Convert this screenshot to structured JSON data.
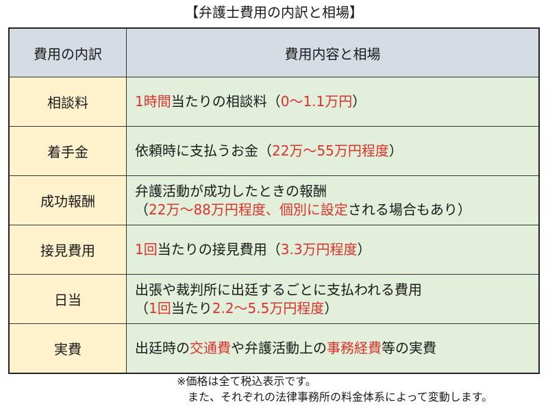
{
  "title": "【弁護士費用の内訳と相場】",
  "header": {
    "col1": "費用の内訳",
    "col2": "費用内容と相場"
  },
  "colors": {
    "header_bg": "#d6dce4",
    "key_bg": "#fff2cc",
    "value_bg": "#e2efda",
    "highlight": "#e0302c"
  },
  "rows": [
    {
      "key": "相談料",
      "lines": [
        [
          {
            "t": "1時間",
            "red": true
          },
          {
            "t": "当たりの相談料（",
            "red": false
          },
          {
            "t": "0～1.1万円",
            "red": true
          },
          {
            "t": "）",
            "red": false
          }
        ]
      ]
    },
    {
      "key": "着手金",
      "lines": [
        [
          {
            "t": "依頼時に支払うお金（",
            "red": false
          },
          {
            "t": "22万～55万円程度",
            "red": true
          },
          {
            "t": "）",
            "red": false
          }
        ]
      ]
    },
    {
      "key": "成功報酬",
      "lines": [
        [
          {
            "t": "弁護活動が成功したときの報酬",
            "red": false
          }
        ],
        [
          {
            "t": "（",
            "red": false
          },
          {
            "t": "22万～88万円程度、個別に設定",
            "red": true
          },
          {
            "t": "される場合もあり）",
            "red": false
          }
        ]
      ]
    },
    {
      "key": "接見費用",
      "lines": [
        [
          {
            "t": "1回",
            "red": true
          },
          {
            "t": "当たりの接見費用（",
            "red": false
          },
          {
            "t": "3.3万円程度",
            "red": true
          },
          {
            "t": "）",
            "red": false
          }
        ]
      ]
    },
    {
      "key": "日当",
      "lines": [
        [
          {
            "t": "出張や裁判所に出廷するごとに支払われる費用",
            "red": false
          }
        ],
        [
          {
            "t": "（",
            "red": false
          },
          {
            "t": "1回",
            "red": true
          },
          {
            "t": "当たり",
            "red": false
          },
          {
            "t": "2.2～5.5万円程度",
            "red": true
          },
          {
            "t": "）",
            "red": false
          }
        ]
      ]
    },
    {
      "key": "実費",
      "lines": [
        [
          {
            "t": "出廷時の",
            "red": false
          },
          {
            "t": "交通費",
            "red": true
          },
          {
            "t": "や弁護活動上の",
            "red": false
          },
          {
            "t": "事務経費",
            "red": true
          },
          {
            "t": "等の実費",
            "red": false
          }
        ]
      ]
    }
  ],
  "notes": [
    "※価格は全て税込表示です。",
    "また、それぞれの法律事務所の料金体系によって変動します。"
  ]
}
